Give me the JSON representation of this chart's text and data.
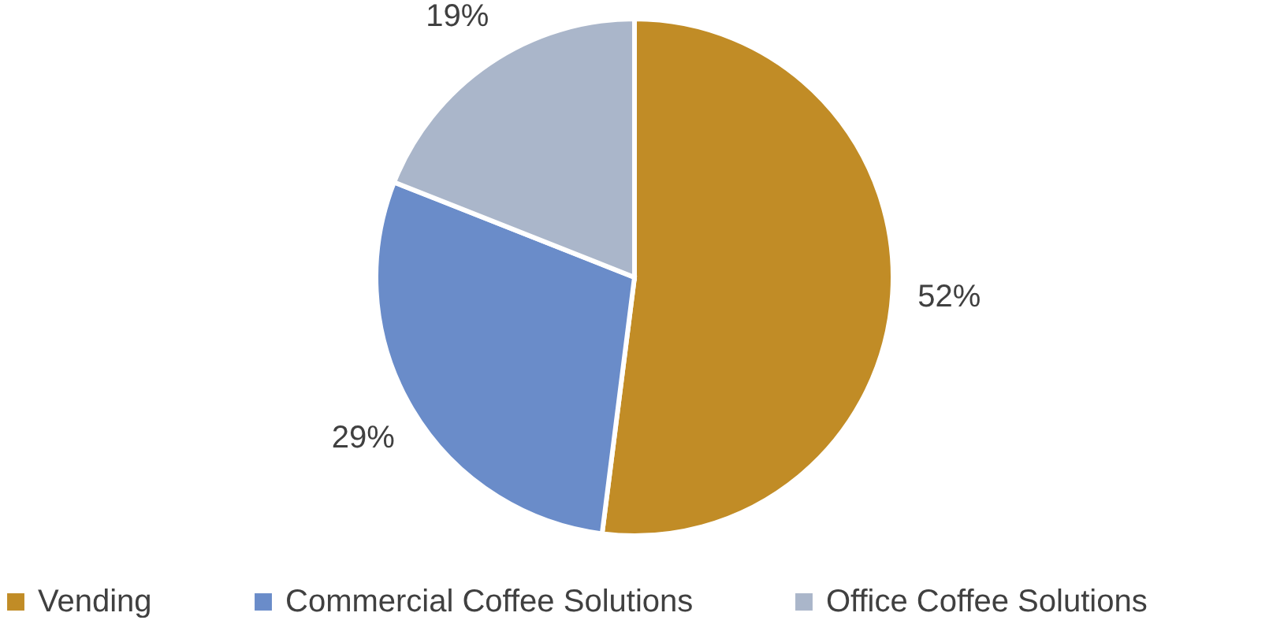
{
  "chart_data": {
    "type": "pie",
    "categories": [
      "Vending",
      "Commercial Coffee Solutions",
      "Office Coffee Solutions"
    ],
    "values": [
      52,
      29,
      19
    ],
    "colors": [
      "#c18c26",
      "#6a8cc9",
      "#aab6ca"
    ],
    "value_labels": [
      "52%",
      "29%",
      "19%"
    ],
    "legend": "bottom"
  }
}
